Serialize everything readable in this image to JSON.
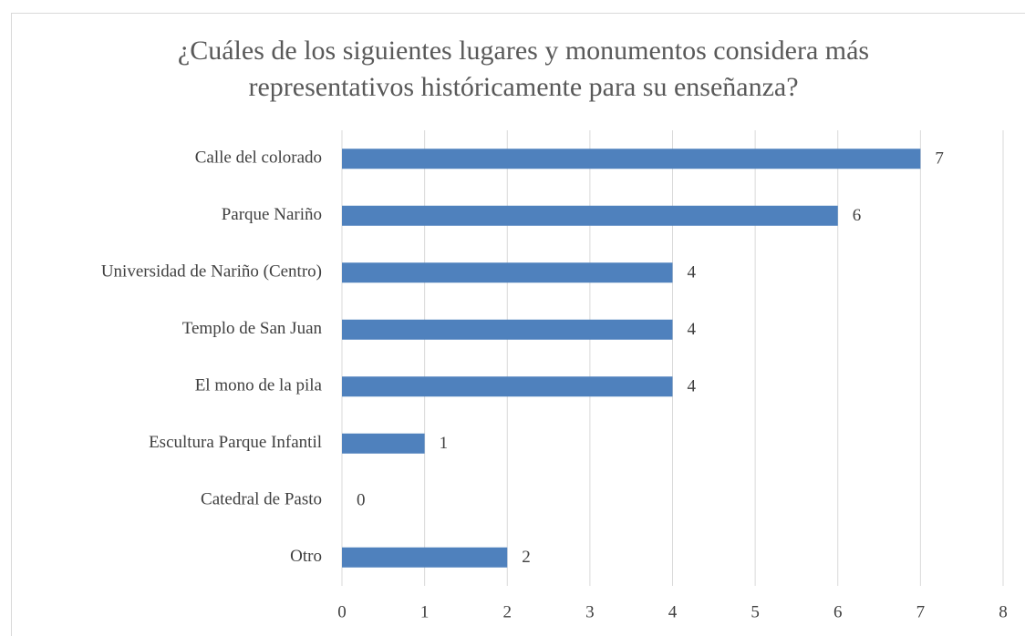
{
  "chart_data": {
    "type": "barh",
    "title": [
      "¿Cuáles de los siguientes lugares y monumentos considera más",
      "representativos históricamente para su enseñanza?"
    ],
    "categories": [
      "Calle del colorado",
      "Parque Nariño",
      "Universidad de Nariño (Centro)",
      "Templo de San Juan",
      "El mono de la pila",
      "Escultura Parque Infantil",
      "Catedral de Pasto",
      "Otro"
    ],
    "values": [
      7,
      6,
      4,
      4,
      4,
      1,
      0,
      2
    ],
    "color": "#4f81bd",
    "xlim": [
      0,
      8
    ],
    "xticks": [
      0,
      1,
      2,
      3,
      4,
      5,
      6,
      7,
      8
    ],
    "grid": true
  }
}
